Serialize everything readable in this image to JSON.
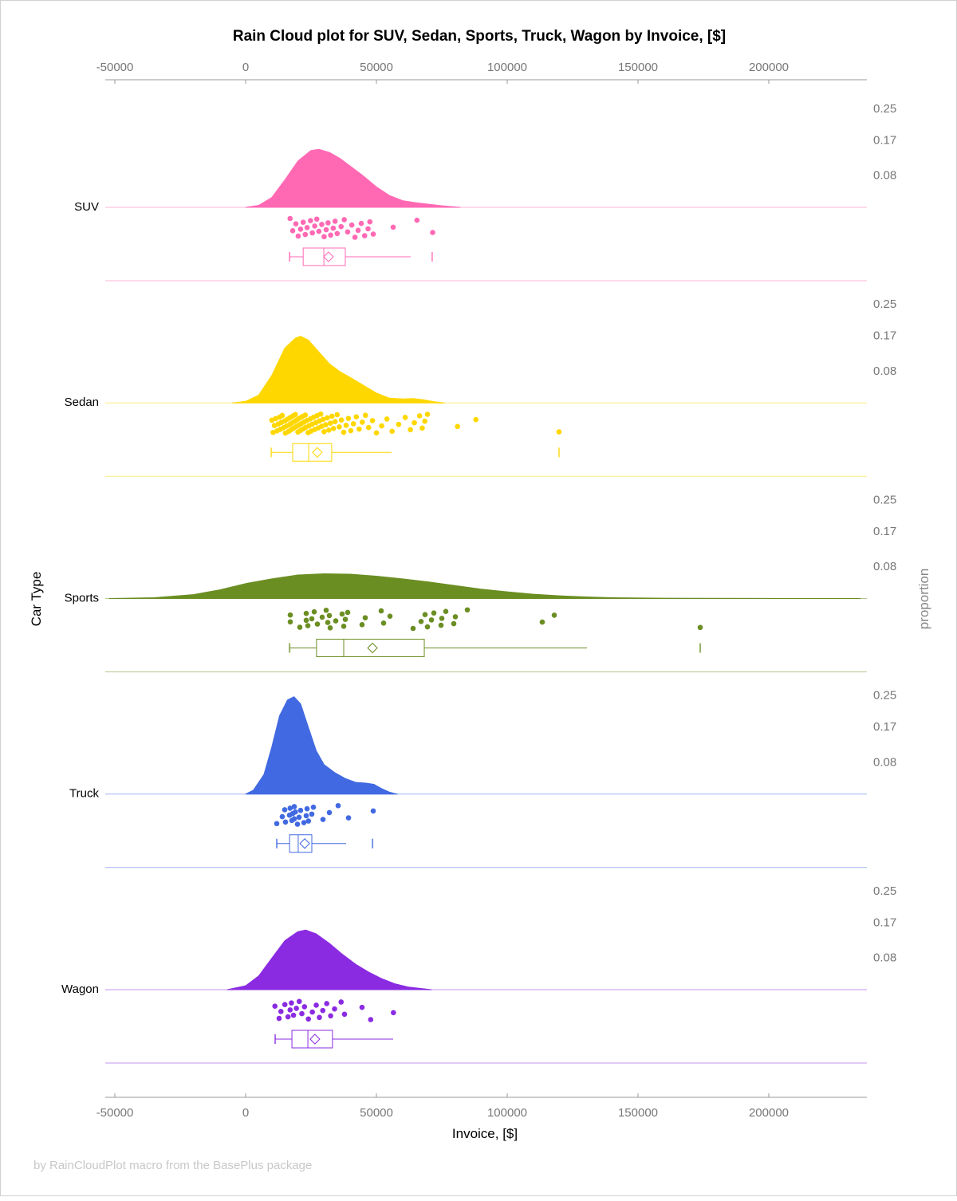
{
  "chart_data": {
    "type": "raincloud",
    "title": "Rain Cloud plot for SUV, Sedan, Sports, Truck, Wagon by Invoice, [$]",
    "xlabel": "Invoice, [$]",
    "ylabel": "Car Type",
    "y2label": "proportion",
    "xlim": [
      -53500,
      237500
    ],
    "xticks": [
      -50000,
      0,
      50000,
      100000,
      150000,
      200000
    ],
    "proportion_ticks": [
      0.25,
      0.17,
      0.08
    ],
    "footer": "by RainCloudPlot macro from the BasePlus package",
    "series": [
      {
        "name": "SUV",
        "color": "#FF69B4",
        "density": [
          [
            0,
            0
          ],
          [
            5000,
            0.005
          ],
          [
            10000,
            0.025
          ],
          [
            15000,
            0.07
          ],
          [
            20000,
            0.118
          ],
          [
            25000,
            0.145
          ],
          [
            28000,
            0.148
          ],
          [
            32000,
            0.14
          ],
          [
            36000,
            0.125
          ],
          [
            40000,
            0.105
          ],
          [
            45000,
            0.08
          ],
          [
            50000,
            0.052
          ],
          [
            55000,
            0.03
          ],
          [
            60000,
            0.017
          ],
          [
            65000,
            0.012
          ],
          [
            70000,
            0.008
          ],
          [
            75000,
            0.004
          ],
          [
            82000,
            0
          ]
        ],
        "points": [
          17000,
          18000,
          19200,
          20100,
          21000,
          22000,
          22800,
          23500,
          24800,
          25500,
          26400,
          27200,
          28000,
          29100,
          30000,
          30800,
          31500,
          32500,
          33500,
          34200,
          35000,
          36500,
          37700,
          39000,
          40600,
          41800,
          43000,
          44200,
          45500,
          46800,
          47500,
          48800,
          56400,
          65500,
          71500
        ],
        "box": {
          "whisker_low": 16800,
          "q1": 22000,
          "median": 29900,
          "mean": 31700,
          "q3": 38100,
          "whisker_high": 63100,
          "outliers": [
            71300
          ]
        }
      },
      {
        "name": "Sedan",
        "color": "#FFD700",
        "density": [
          [
            -5000,
            0
          ],
          [
            0,
            0.004
          ],
          [
            5000,
            0.02
          ],
          [
            10000,
            0.07
          ],
          [
            15000,
            0.14
          ],
          [
            19000,
            0.165
          ],
          [
            21000,
            0.17
          ],
          [
            24000,
            0.16
          ],
          [
            28000,
            0.13
          ],
          [
            32000,
            0.1
          ],
          [
            36000,
            0.08
          ],
          [
            40000,
            0.065
          ],
          [
            45000,
            0.045
          ],
          [
            50000,
            0.025
          ],
          [
            55000,
            0.012
          ],
          [
            60000,
            0.01
          ],
          [
            64000,
            0.011
          ],
          [
            68000,
            0.008
          ],
          [
            72000,
            0.003
          ],
          [
            76000,
            0
          ]
        ],
        "points": [
          10000,
          10500,
          11000,
          11500,
          12000,
          12500,
          13000,
          13300,
          13700,
          14000,
          14500,
          15000,
          15200,
          15600,
          16000,
          16400,
          16800,
          17000,
          17300,
          17700,
          18000,
          18300,
          18700,
          19000,
          19300,
          19600,
          20000,
          20300,
          20600,
          21000,
          21300,
          21600,
          22000,
          22400,
          22800,
          23000,
          23500,
          23900,
          24300,
          24800,
          25000,
          25500,
          26000,
          26400,
          26900,
          27300,
          27800,
          28200,
          28700,
          29100,
          29600,
          30000,
          30600,
          31200,
          31800,
          32400,
          33000,
          33600,
          34200,
          35000,
          35800,
          36600,
          37500,
          38400,
          39300,
          40200,
          41200,
          42300,
          43400,
          44600,
          45800,
          47000,
          48500,
          50000,
          52000,
          54000,
          56000,
          58500,
          61000,
          63000,
          64500,
          66500,
          67500,
          68500,
          69500,
          81000,
          88000,
          119800
        ],
        "box": {
          "whisker_low": 9800,
          "q1": 18000,
          "median": 24100,
          "mean": 27400,
          "q3": 32900,
          "whisker_high": 55800,
          "outliers": [
            119800
          ]
        }
      },
      {
        "name": "Sports",
        "color": "#6B8E23",
        "density": [
          [
            -52000,
            0
          ],
          [
            -35000,
            0.002
          ],
          [
            -20000,
            0.01
          ],
          [
            -10000,
            0.022
          ],
          [
            0,
            0.038
          ],
          [
            10000,
            0.05
          ],
          [
            20000,
            0.06
          ],
          [
            30000,
            0.063
          ],
          [
            40000,
            0.062
          ],
          [
            50000,
            0.057
          ],
          [
            60000,
            0.05
          ],
          [
            70000,
            0.042
          ],
          [
            80000,
            0.033
          ],
          [
            90000,
            0.024
          ],
          [
            100000,
            0.017
          ],
          [
            110000,
            0.011
          ],
          [
            120000,
            0.007
          ],
          [
            130000,
            0.004
          ],
          [
            140000,
            0.002
          ],
          [
            160000,
            0.0008
          ],
          [
            180000,
            0.0004
          ],
          [
            200000,
            0.0002
          ],
          [
            235000,
            0
          ]
        ],
        "points": [
          17070,
          17070,
          20730,
          23170,
          23170,
          23780,
          25300,
          26220,
          27440,
          29270,
          30790,
          31400,
          32010,
          32320,
          34450,
          36890,
          37500,
          38110,
          39020,
          44510,
          45730,
          51830,
          52740,
          55180,
          64020,
          67070,
          68600,
          69510,
          71040,
          71950,
          74700,
          75000,
          76520,
          79570,
          80180,
          84760,
          113410,
          117990,
          173780
        ],
        "box": {
          "whisker_low": 16800,
          "q1": 27100,
          "median": 37500,
          "mean": 48500,
          "q3": 68300,
          "whisker_high": 130500,
          "outliers": [
            173800
          ]
        }
      },
      {
        "name": "Truck",
        "color": "#4169E1",
        "density": [
          [
            0,
            0
          ],
          [
            3000,
            0.01
          ],
          [
            7000,
            0.05
          ],
          [
            10000,
            0.12
          ],
          [
            13000,
            0.2
          ],
          [
            16000,
            0.24
          ],
          [
            18500,
            0.248
          ],
          [
            21000,
            0.23
          ],
          [
            24000,
            0.17
          ],
          [
            27000,
            0.11
          ],
          [
            30000,
            0.075
          ],
          [
            34000,
            0.055
          ],
          [
            38000,
            0.04
          ],
          [
            42000,
            0.03
          ],
          [
            46000,
            0.028
          ],
          [
            49000,
            0.025
          ],
          [
            52000,
            0.014
          ],
          [
            55000,
            0.005
          ],
          [
            58000,
            0
          ]
        ],
        "points": [
          11890,
          14020,
          14940,
          15240,
          16770,
          17000,
          17680,
          18000,
          18600,
          18600,
          19000,
          19820,
          20430,
          21000,
          22260,
          23170,
          23480,
          24000,
          25300,
          25910,
          29570,
          32010,
          35370,
          39330,
          48780
        ],
        "box": {
          "whisker_low": 11900,
          "q1": 16800,
          "median": 20100,
          "mean": 22600,
          "q3": 25300,
          "whisker_high": 38400,
          "outliers": [
            48500
          ]
        }
      },
      {
        "name": "Wagon",
        "color": "#8A2BE2",
        "density": [
          [
            -7000,
            0
          ],
          [
            0,
            0.01
          ],
          [
            5000,
            0.035
          ],
          [
            10000,
            0.08
          ],
          [
            15000,
            0.125
          ],
          [
            20000,
            0.148
          ],
          [
            23000,
            0.152
          ],
          [
            27000,
            0.142
          ],
          [
            32000,
            0.118
          ],
          [
            37000,
            0.09
          ],
          [
            42000,
            0.065
          ],
          [
            47000,
            0.045
          ],
          [
            52000,
            0.028
          ],
          [
            57000,
            0.015
          ],
          [
            62000,
            0.007
          ],
          [
            67000,
            0.003
          ],
          [
            71000,
            0
          ]
        ],
        "points": [
          11200,
          12800,
          13500,
          15000,
          16200,
          17000,
          17500,
          18300,
          19400,
          20500,
          21500,
          22500,
          24000,
          25500,
          27000,
          28200,
          29500,
          31000,
          32500,
          34000,
          36500,
          37800,
          44500,
          47800,
          56500
        ],
        "box": {
          "whisker_low": 11300,
          "q1": 17700,
          "median": 23800,
          "mean": 26500,
          "q3": 33200,
          "whisker_high": 56400,
          "outliers": []
        }
      }
    ]
  }
}
